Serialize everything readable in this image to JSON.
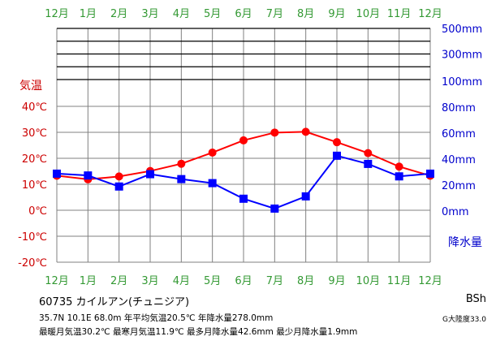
{
  "chart_data": {
    "type": "line",
    "months": [
      "12月",
      "1月",
      "2月",
      "3月",
      "4月",
      "5月",
      "6月",
      "7月",
      "8月",
      "9月",
      "10月",
      "11月",
      "12月"
    ],
    "temp_axis_title": "気温",
    "temp_ticks": [
      "40℃",
      "30℃",
      "20℃",
      "10℃",
      "0℃",
      "-10℃",
      "-20℃"
    ],
    "temp_tick_values": [
      40,
      30,
      20,
      10,
      0,
      -10,
      -20
    ],
    "precip_axis_title": "降水量",
    "precip_ticks": [
      "500mm",
      "300mm",
      "100mm",
      "80mm",
      "60mm",
      "40mm",
      "20mm",
      "0mm"
    ],
    "precip_linear_tick_values": [
      100,
      80,
      60,
      40,
      20,
      0
    ],
    "precip_compressed_tick_values": [
      500,
      400,
      300,
      200,
      100
    ],
    "temp_ylim": [
      -20,
      40
    ],
    "precip_ylim": [
      0,
      500
    ],
    "temperature": {
      "color": "#ff0000",
      "values": [
        13.3,
        11.9,
        13.0,
        15.1,
        17.9,
        22.2,
        26.9,
        29.9,
        30.2,
        26.2,
        22.0,
        16.8,
        13.3
      ]
    },
    "precipitation": {
      "color": "#0000ff",
      "values": [
        28.8,
        27.4,
        18.9,
        28.4,
        24.6,
        21.5,
        9.5,
        1.9,
        11.3,
        42.6,
        36.3,
        26.7,
        28.8
      ]
    },
    "grid": true
  },
  "colors": {
    "month_labels": "#339933",
    "temp_axis": "#cc0000",
    "precip_axis": "#0000cc",
    "grid": "#808080",
    "band_lines": "#000000"
  },
  "station": {
    "title": "60735  カイルアン(チュニジア)",
    "detail1": "35.7N  10.1E  68.0m  年平均気温20.5℃  年降水量278.0mm",
    "detail2": "最暖月気温30.2℃ 最寒月気温11.9℃ 最多月降水量42.6mm 最少月降水量1.9mm",
    "climate_class": "BSh",
    "aridity": "G大陸度33.0"
  }
}
